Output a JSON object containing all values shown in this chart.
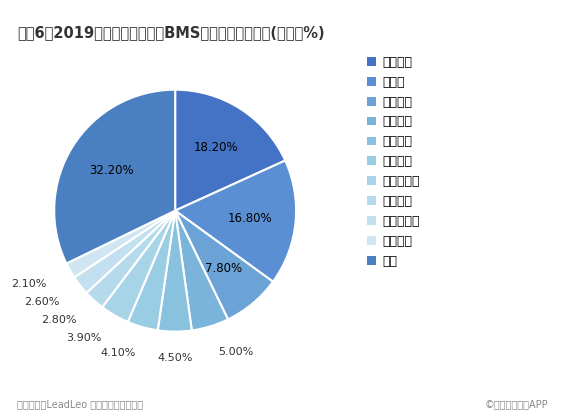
{
  "title": "图表6：2019年中国新能源汽车BMS行业企业竞争情况(单位：%)",
  "labels": [
    "宁德时代",
    "比亚迪",
    "金脉电子",
    "上海捷能",
    "亿能电子",
    "东软睿驰",
    "奇瑞新能源",
    "普瑞均胜",
    "长安新能源",
    "鹏辉能源",
    "其他"
  ],
  "values": [
    18.2,
    16.8,
    7.8,
    5.0,
    4.5,
    4.1,
    3.9,
    2.8,
    2.6,
    2.1,
    32.2
  ],
  "colors": [
    "#4472c4",
    "#5b8fd4",
    "#6ba3d6",
    "#7ab4db",
    "#89c2de",
    "#99cde4",
    "#a8d4e8",
    "#b5daec",
    "#c2e0ef",
    "#cfe6f2",
    "#4a7fc1"
  ],
  "pct_labels": [
    "18.20%",
    "16.80%",
    "7.80%",
    "5.00%",
    "4.50%",
    "4.10%",
    "3.90%",
    "2.80%",
    "2.60%",
    "2.10%",
    "32.20%"
  ],
  "footer_left": "资料来源：LeadLeo 前瞻产业研究院整理",
  "footer_right": "©前瞻经济学人APP",
  "background_color": "#ffffff",
  "title_color": "#333333",
  "title_fontsize": 10.5,
  "legend_fontsize": 9,
  "label_fontsize": 8.5
}
